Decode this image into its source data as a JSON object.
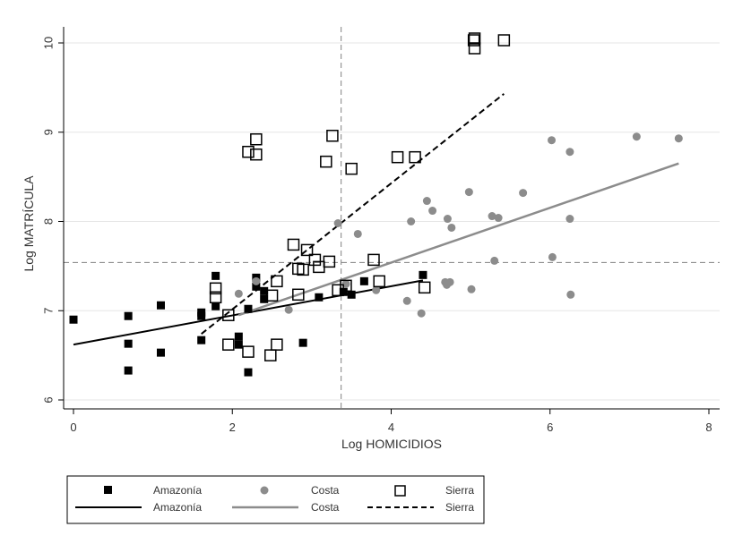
{
  "chart_data": {
    "type": "scatter",
    "title": "",
    "xlabel": "Log HOMICIDIOS",
    "ylabel": "Log MATRÍCULA",
    "xlim": [
      -0.1,
      8.15
    ],
    "ylim": [
      5.85,
      10.18
    ],
    "xticks": [
      0,
      2,
      4,
      6,
      8
    ],
    "yticks": [
      6,
      7,
      8,
      9,
      10
    ],
    "grid": true,
    "reference_lines": {
      "vertical_x": 3.37,
      "horizontal_y": 7.54
    },
    "legend_position": "bottom",
    "legend_entries": [
      "Amazonía",
      "Costa",
      "Sierra",
      "Amazonía",
      "Costa",
      "Sierra"
    ],
    "series": [
      {
        "name": "Amazonía",
        "kind": "points",
        "marker": "filled-square",
        "color": "#000000",
        "points": [
          [
            0.0,
            6.9
          ],
          [
            0.69,
            6.94
          ],
          [
            0.69,
            6.63
          ],
          [
            0.69,
            6.33
          ],
          [
            1.1,
            7.06
          ],
          [
            1.1,
            6.53
          ],
          [
            1.61,
            6.98
          ],
          [
            1.61,
            6.94
          ],
          [
            1.61,
            6.67
          ],
          [
            1.79,
            7.39
          ],
          [
            1.79,
            7.05
          ],
          [
            2.2,
            7.02
          ],
          [
            2.2,
            6.31
          ],
          [
            2.08,
            6.71
          ],
          [
            2.08,
            6.62
          ],
          [
            2.3,
            7.37
          ],
          [
            2.3,
            7.27
          ],
          [
            2.4,
            7.22
          ],
          [
            2.4,
            7.13
          ],
          [
            2.89,
            6.64
          ],
          [
            3.09,
            7.15
          ],
          [
            3.4,
            7.21
          ],
          [
            3.5,
            7.18
          ],
          [
            3.66,
            7.33
          ],
          [
            4.4,
            7.4
          ]
        ]
      },
      {
        "name": "Costa",
        "kind": "points",
        "marker": "circle",
        "color": "#8c8c8c",
        "points": [
          [
            2.08,
            7.19
          ],
          [
            2.3,
            7.33
          ],
          [
            2.71,
            7.01
          ],
          [
            3.33,
            7.98
          ],
          [
            3.43,
            7.3
          ],
          [
            3.58,
            7.86
          ],
          [
            3.81,
            7.23
          ],
          [
            4.2,
            7.11
          ],
          [
            4.25,
            8.0
          ],
          [
            4.38,
            6.97
          ],
          [
            4.45,
            8.23
          ],
          [
            4.52,
            8.12
          ],
          [
            4.68,
            7.32
          ],
          [
            4.7,
            7.29
          ],
          [
            4.71,
            8.03
          ],
          [
            4.74,
            7.32
          ],
          [
            4.76,
            7.93
          ],
          [
            4.98,
            8.33
          ],
          [
            5.01,
            7.24
          ],
          [
            5.27,
            8.06
          ],
          [
            5.3,
            7.56
          ],
          [
            5.35,
            8.04
          ],
          [
            5.66,
            8.32
          ],
          [
            6.02,
            8.91
          ],
          [
            6.03,
            7.6
          ],
          [
            6.25,
            8.78
          ],
          [
            6.25,
            8.03
          ],
          [
            6.26,
            7.18
          ],
          [
            7.09,
            8.95
          ],
          [
            7.62,
            8.93
          ]
        ]
      },
      {
        "name": "Sierra",
        "kind": "points",
        "marker": "hollow-square",
        "color": "#000000",
        "points": [
          [
            1.79,
            7.25
          ],
          [
            1.79,
            7.15
          ],
          [
            1.95,
            6.95
          ],
          [
            1.95,
            6.62
          ],
          [
            2.2,
            8.78
          ],
          [
            2.2,
            6.54
          ],
          [
            2.3,
            8.92
          ],
          [
            2.3,
            8.75
          ],
          [
            2.48,
            6.5
          ],
          [
            2.5,
            7.17
          ],
          [
            2.56,
            7.33
          ],
          [
            2.56,
            6.62
          ],
          [
            2.77,
            7.74
          ],
          [
            2.83,
            7.47
          ],
          [
            2.83,
            7.18
          ],
          [
            2.89,
            7.46
          ],
          [
            2.94,
            7.68
          ],
          [
            3.04,
            7.57
          ],
          [
            3.09,
            7.49
          ],
          [
            3.18,
            8.67
          ],
          [
            3.22,
            7.55
          ],
          [
            3.26,
            8.96
          ],
          [
            3.33,
            7.23
          ],
          [
            3.43,
            7.28
          ],
          [
            3.5,
            8.59
          ],
          [
            3.78,
            7.57
          ],
          [
            3.85,
            7.33
          ],
          [
            4.08,
            8.72
          ],
          [
            4.3,
            8.72
          ],
          [
            4.42,
            7.26
          ],
          [
            5.04,
            10.03
          ],
          [
            5.05,
            10.05
          ],
          [
            5.05,
            9.94
          ],
          [
            5.42,
            10.03
          ]
        ]
      },
      {
        "name": "Amazonía",
        "kind": "fit-line",
        "style": "solid",
        "color": "#000000",
        "points": [
          [
            0.0,
            6.62
          ],
          [
            4.4,
            7.34
          ]
        ]
      },
      {
        "name": "Costa",
        "kind": "fit-line",
        "style": "solid",
        "color": "#8c8c8c",
        "points": [
          [
            2.08,
            6.95
          ],
          [
            7.62,
            8.65
          ]
        ]
      },
      {
        "name": "Sierra",
        "kind": "fit-line",
        "style": "dashed",
        "color": "#000000",
        "points": [
          [
            1.61,
            6.74
          ],
          [
            5.42,
            9.43
          ]
        ]
      }
    ]
  }
}
